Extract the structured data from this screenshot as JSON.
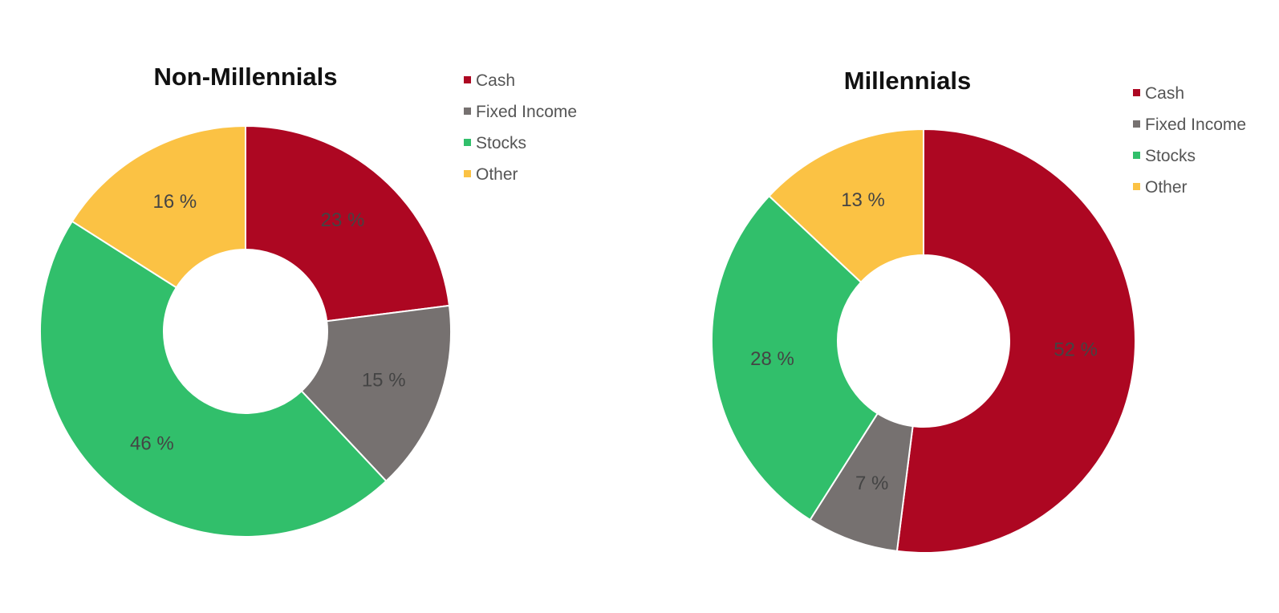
{
  "chart_data": [
    {
      "type": "pie",
      "donut": true,
      "title": "Non-Millennials",
      "legend_position": "top-right",
      "categories": [
        "Cash",
        "Fixed Income",
        "Stocks",
        "Other"
      ],
      "values": [
        23,
        15,
        46,
        16
      ],
      "labels": [
        "23 %",
        "15 %",
        "46 %",
        "16 %"
      ],
      "colors": [
        "#ad0722",
        "#767170",
        "#31bf6b",
        "#fbc244"
      ]
    },
    {
      "type": "pie",
      "donut": true,
      "title": "Millennials",
      "legend_position": "top-right",
      "categories": [
        "Cash",
        "Fixed Income",
        "Stocks",
        "Other"
      ],
      "values": [
        52,
        7,
        28,
        13
      ],
      "labels": [
        "52 %",
        "7 %",
        "28 %",
        "13 %"
      ],
      "colors": [
        "#ad0722",
        "#767170",
        "#31bf6b",
        "#fbc244"
      ]
    }
  ]
}
